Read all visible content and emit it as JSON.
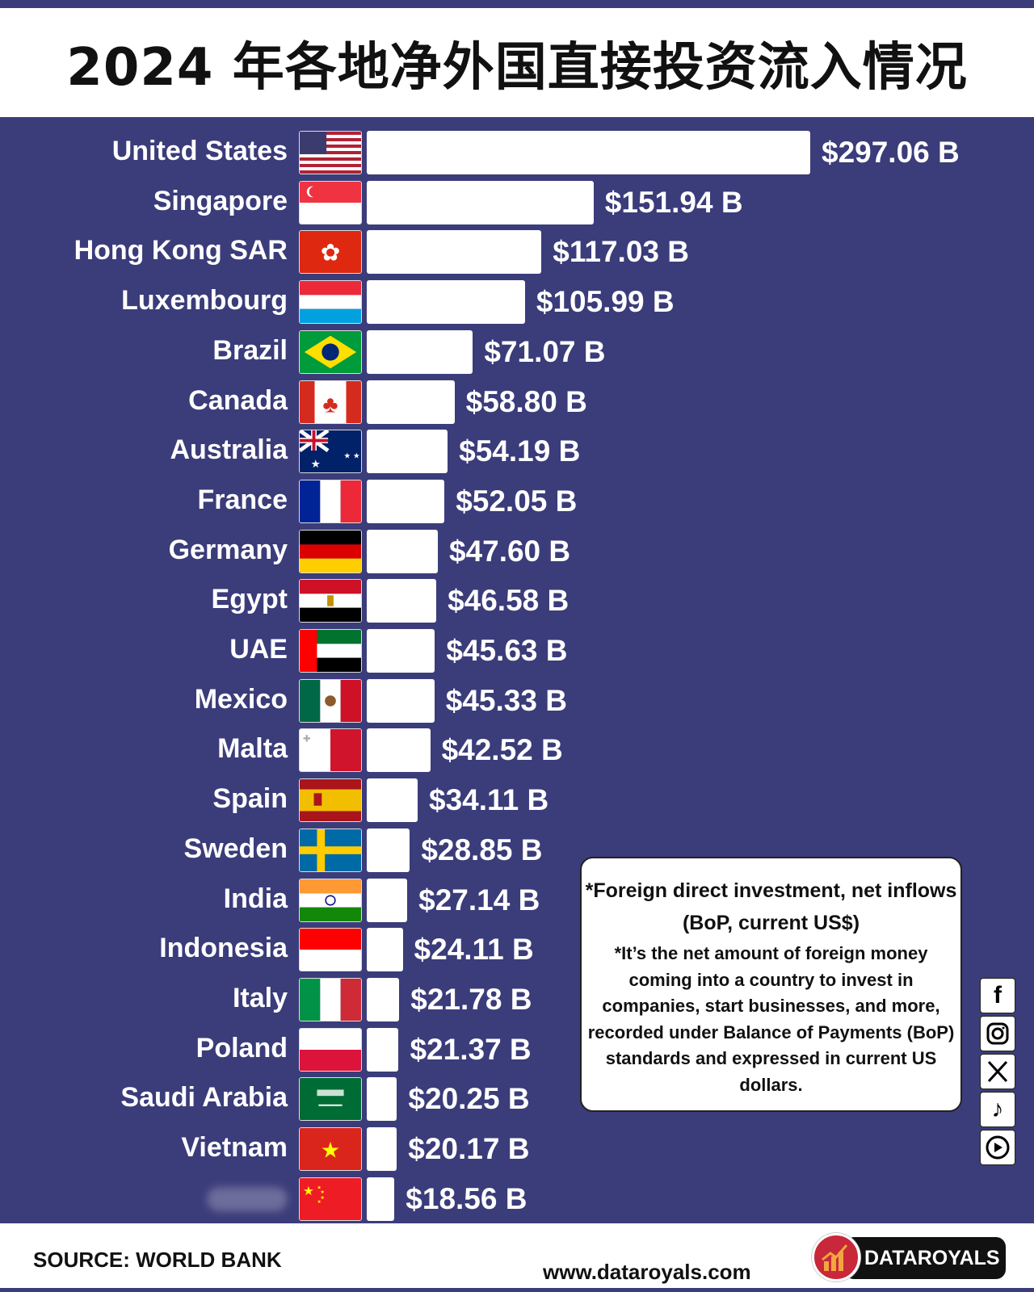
{
  "title": "2024 年各地净外国直接投资流入情况",
  "chart_data": {
    "type": "bar",
    "orientation": "horizontal",
    "title": "2024 年各地净外国直接投资流入情况",
    "unit_prefix": "$",
    "unit_suffix": " B",
    "categories": [
      "United States",
      "Singapore",
      "Hong Kong SAR",
      "Luxembourg",
      "Brazil",
      "Canada",
      "Australia",
      "France",
      "Germany",
      "Egypt",
      "UAE",
      "Mexico",
      "Malta",
      "Spain",
      "Sweden",
      "India",
      "Indonesia",
      "Italy",
      "Poland",
      "Saudi Arabia",
      "Vietnam",
      ""
    ],
    "flags": [
      "us",
      "sg",
      "hk",
      "lu",
      "br",
      "ca",
      "au",
      "fr",
      "de",
      "eg",
      "ae",
      "mx",
      "mt",
      "es",
      "se",
      "in",
      "id",
      "it",
      "pl",
      "sa",
      "vn",
      "cn"
    ],
    "values": [
      297.06,
      151.94,
      117.03,
      105.99,
      71.07,
      58.8,
      54.19,
      52.05,
      47.6,
      46.58,
      45.63,
      45.33,
      42.52,
      34.11,
      28.85,
      27.14,
      24.11,
      21.78,
      21.37,
      20.25,
      20.17,
      18.56
    ],
    "value_labels": [
      "$297.06 B",
      "$151.94 B",
      "$117.03 B",
      "$105.99 B",
      "$71.07 B",
      "$58.80 B",
      "$54.19 B",
      "$52.05 B",
      "$47.60 B",
      "$46.58 B",
      "$45.63 B",
      "$45.33 B",
      "$42.52 B",
      "$34.11 B",
      "$28.85 B",
      "$27.14 B",
      "$24.11 B",
      "$21.78 B",
      "$21.37 B",
      "$20.25 B",
      "$20.17 B",
      "$18.56 B"
    ],
    "bar_color": "#ffffff",
    "background_color": "#3b3c7a"
  },
  "note": {
    "heading": "*Foreign direct investment, net inflows (BoP, current US$)",
    "body": "*It’s the net amount of foreign money coming into a country to invest in companies, start businesses, and more, recorded under Balance of Payments (BoP) standards and expressed in current US dollars."
  },
  "social": [
    "facebook-icon",
    "instagram-icon",
    "x-icon",
    "tiktok-icon",
    "youtube-icon"
  ],
  "footer": {
    "source": "SOURCE: WORLD BANK",
    "website": "www.dataroyals.com",
    "logo_text": "DATAROYALS"
  }
}
